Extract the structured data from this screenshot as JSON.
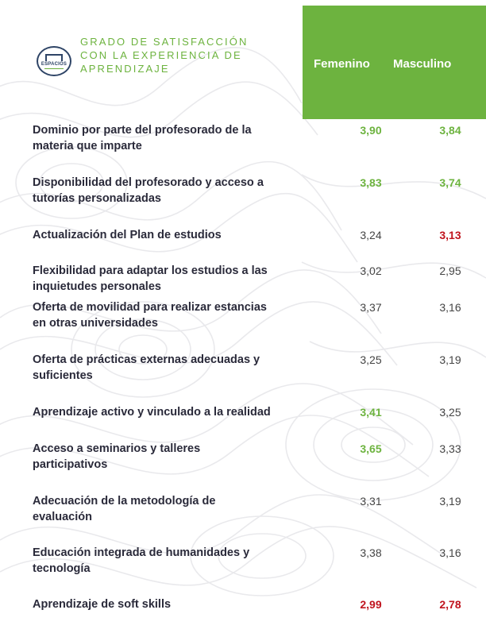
{
  "title_lines": [
    "GRADO DE SATISFACCIÓN",
    "CON LA  EXPERIENCIA DE",
    "APRENDIZAJE"
  ],
  "logo": {
    "text": "ESPACIOS",
    "icon": "espacios-logo-icon"
  },
  "columns": [
    "Femenino",
    "Masculino"
  ],
  "colors": {
    "accent_green": "#6db33f",
    "highlight_red": "#c0141e",
    "text_dark": "#2a2a3a"
  },
  "rows": [
    {
      "lines": [
        "Dominio por parte del profesorado de la",
        "materia que imparte"
      ],
      "femenino": "3,90",
      "femenino_style": "high",
      "masculino": "3,84",
      "masculino_style": "high"
    },
    {
      "lines": [
        "Disponibilidad del profesorado y acceso a",
        "tutorías personalizadas"
      ],
      "femenino": "3,83",
      "femenino_style": "high",
      "masculino": "3,74",
      "masculino_style": "high"
    },
    {
      "lines": [
        "Actualización del Plan de estudios"
      ],
      "femenino": "3,24",
      "femenino_style": "normal",
      "masculino": "3,13",
      "masculino_style": "low"
    },
    {
      "lines": [
        "Flexibilidad para adaptar los estudios a las",
        "inquietudes personales"
      ],
      "femenino": "3,02",
      "femenino_style": "normal",
      "masculino": "2,95",
      "masculino_style": "normal"
    },
    {
      "lines": [
        "Oferta de movilidad para realizar estancias",
        "en otras universidades"
      ],
      "femenino": "3,37",
      "femenino_style": "normal",
      "masculino": "3,16",
      "masculino_style": "normal"
    },
    {
      "lines": [
        "Oferta de prácticas externas adecuadas y",
        "suficientes"
      ],
      "femenino": "3,25",
      "femenino_style": "normal",
      "masculino": "3,19",
      "masculino_style": "normal"
    },
    {
      "lines": [
        "Aprendizaje activo y vinculado a la realidad"
      ],
      "femenino": "3,41",
      "femenino_style": "high",
      "masculino": "3,25",
      "masculino_style": "normal"
    },
    {
      "lines": [
        "Acceso a seminarios y talleres",
        "participativos"
      ],
      "femenino": "3,65",
      "femenino_style": "high",
      "masculino": "3,33",
      "masculino_style": "normal"
    },
    {
      "lines": [
        "Adecuación de la metodología de",
        "evaluación"
      ],
      "femenino": "3,31",
      "femenino_style": "normal",
      "masculino": "3,19",
      "masculino_style": "normal"
    },
    {
      "lines": [
        "Educación integrada de humanidades y",
        "tecnología"
      ],
      "femenino": "3,38",
      "femenino_style": "normal",
      "masculino": "3,16",
      "masculino_style": "normal"
    },
    {
      "lines": [
        "Aprendizaje de soft skills"
      ],
      "femenino": "2,99",
      "femenino_style": "low",
      "masculino": "2,78",
      "masculino_style": "low"
    }
  ]
}
